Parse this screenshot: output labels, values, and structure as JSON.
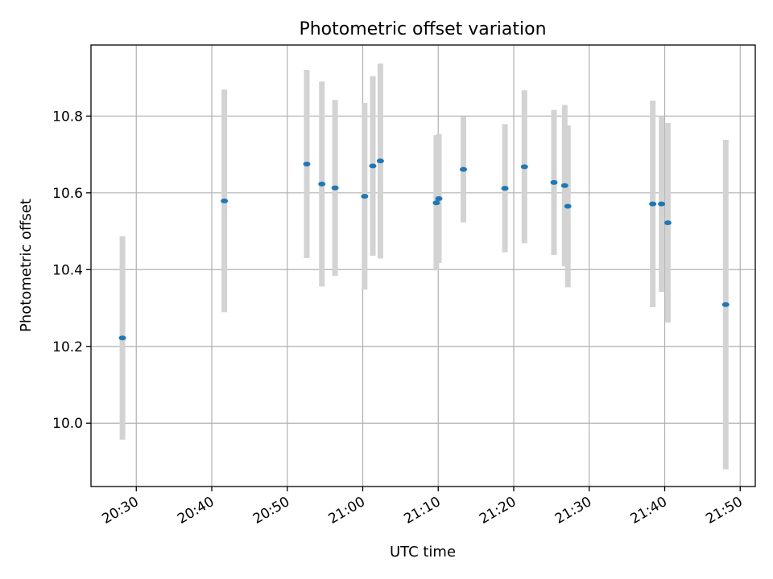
{
  "chart_data": {
    "type": "scatter",
    "title": "Photometric offset variation",
    "xlabel": "UTC time",
    "ylabel": "Photometric offset",
    "xlim": [
      "20:24",
      "21:52"
    ],
    "ylim": [
      9.835,
      10.985
    ],
    "x_ticks": [
      "20:30",
      "20:40",
      "20:50",
      "21:00",
      "21:10",
      "21:20",
      "21:30",
      "21:40",
      "21:50"
    ],
    "y_ticks": [
      "10.0",
      "10.2",
      "10.4",
      "10.6",
      "10.8"
    ],
    "grid": true,
    "marker_color": "#1f77b4",
    "errorbar_color": "#d3d3d3",
    "points": [
      {
        "time": "20:28:10",
        "y": 10.222,
        "yerr": 0.265
      },
      {
        "time": "20:41:40",
        "y": 10.579,
        "yerr": 0.29
      },
      {
        "time": "20:52:35",
        "y": 10.675,
        "yerr": 0.245
      },
      {
        "time": "20:54:35",
        "y": 10.623,
        "yerr": 0.267
      },
      {
        "time": "20:56:20",
        "y": 10.613,
        "yerr": 0.229
      },
      {
        "time": "21:00:15",
        "y": 10.591,
        "yerr": 0.243
      },
      {
        "time": "21:01:20",
        "y": 10.67,
        "yerr": 0.234
      },
      {
        "time": "21:02:20",
        "y": 10.683,
        "yerr": 0.254
      },
      {
        "time": "21:09:45",
        "y": 10.574,
        "yerr": 0.176
      },
      {
        "time": "21:10:05",
        "y": 10.585,
        "yerr": 0.168
      },
      {
        "time": "21:13:20",
        "y": 10.661,
        "yerr": 0.138
      },
      {
        "time": "21:18:50",
        "y": 10.612,
        "yerr": 0.167
      },
      {
        "time": "21:21:25",
        "y": 10.668,
        "yerr": 0.199
      },
      {
        "time": "21:25:20",
        "y": 10.627,
        "yerr": 0.189
      },
      {
        "time": "21:26:45",
        "y": 10.619,
        "yerr": 0.21
      },
      {
        "time": "21:27:10",
        "y": 10.565,
        "yerr": 0.211
      },
      {
        "time": "21:38:25",
        "y": 10.571,
        "yerr": 0.269
      },
      {
        "time": "21:39:35",
        "y": 10.571,
        "yerr": 0.229
      },
      {
        "time": "21:40:25",
        "y": 10.522,
        "yerr": 0.26
      },
      {
        "time": "21:48:05",
        "y": 10.309,
        "yerr": 0.429
      }
    ]
  }
}
